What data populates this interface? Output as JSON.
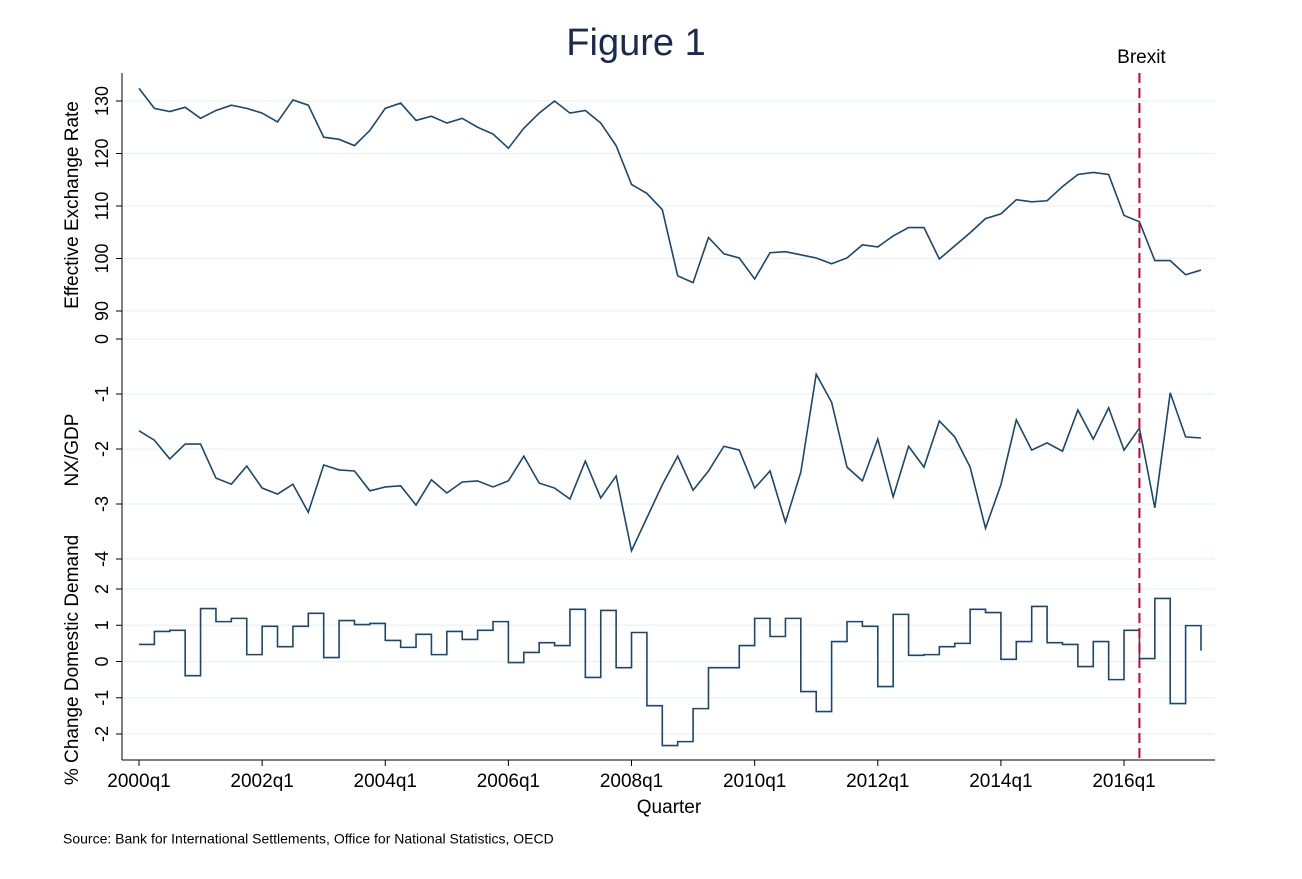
{
  "chart_data": {
    "type": "line",
    "title": "Figure 1",
    "xlabel": "Quarter",
    "source": "Source: Bank for International Settlements, Office for National Statistics, OECD",
    "color": "#1a476f",
    "grid": true,
    "annotation": {
      "label": "Brexit",
      "x": 65,
      "color": "#c10534"
    },
    "categories": [
      "2000q1",
      null,
      null,
      null,
      null,
      null,
      null,
      null,
      "2002q1",
      null,
      null,
      null,
      null,
      null,
      null,
      null,
      "2004q1",
      null,
      null,
      null,
      null,
      null,
      null,
      null,
      "2006q1",
      null,
      null,
      null,
      null,
      null,
      null,
      null,
      "2008q1",
      null,
      null,
      null,
      null,
      null,
      null,
      null,
      "2010q1",
      null,
      null,
      null,
      null,
      null,
      null,
      null,
      "2012q1",
      null,
      null,
      null,
      null,
      null,
      null,
      null,
      "2014q1",
      null,
      null,
      null,
      null,
      null,
      null,
      null,
      "2016q1",
      null,
      null,
      null,
      null,
      null
    ],
    "panels": [
      {
        "type": "line",
        "ylabel": "Effective Exchange Rate",
        "ylim": [
          90,
          130
        ],
        "yticks": [
          90,
          100,
          110,
          120,
          130
        ],
        "values": [
          132.4,
          128.6,
          128.0,
          128.8,
          126.7,
          128.2,
          129.2,
          128.6,
          127.7,
          126.0,
          130.2,
          129.2,
          123.1,
          122.7,
          121.5,
          124.4,
          128.6,
          129.6,
          126.3,
          127.1,
          125.8,
          126.7,
          125.0,
          123.7,
          121.0,
          124.8,
          127.7,
          130.0,
          127.7,
          128.2,
          125.8,
          121.5,
          114.1,
          112.4,
          109.3,
          96.7,
          95.4,
          104.0,
          100.9,
          100.1,
          96.1,
          101.1,
          101.3,
          100.7,
          100.1,
          99.0,
          100.1,
          102.6,
          102.2,
          104.3,
          105.9,
          105.9,
          99.9,
          102.4,
          104.9,
          107.6,
          108.5,
          111.2,
          110.8,
          111.0,
          113.7,
          116.0,
          116.4,
          116.0,
          108.2,
          107.0,
          99.6,
          99.6,
          96.9,
          97.8
        ]
      },
      {
        "type": "line",
        "ylabel": "NX/GDP",
        "ylim": [
          -4,
          0
        ],
        "yticks": [
          -4,
          -3,
          -2,
          -1,
          0
        ],
        "values": [
          -1.67,
          -1.84,
          -2.18,
          -1.91,
          -1.91,
          -2.53,
          -2.64,
          -2.31,
          -2.71,
          -2.82,
          -2.64,
          -3.15,
          -2.29,
          -2.38,
          -2.4,
          -2.76,
          -2.69,
          -2.67,
          -3.02,
          -2.56,
          -2.8,
          -2.6,
          -2.58,
          -2.69,
          -2.58,
          -2.13,
          -2.62,
          -2.71,
          -2.91,
          -2.22,
          -2.89,
          -2.49,
          -3.85,
          -3.25,
          -2.65,
          -2.13,
          -2.75,
          -2.4,
          -1.95,
          -2.02,
          -2.71,
          -2.4,
          -3.33,
          -2.42,
          -0.64,
          -1.15,
          -2.33,
          -2.58,
          -1.82,
          -2.87,
          -1.95,
          -2.33,
          -1.49,
          -1.78,
          -2.33,
          -3.44,
          -2.65,
          -1.47,
          -2.02,
          -1.89,
          -2.04,
          -1.29,
          -1.82,
          -1.25,
          -2.02,
          -1.62,
          -3.07,
          -0.98,
          -1.78,
          -1.8
        ]
      },
      {
        "type": "step",
        "ylabel": "% Change Domestic Demand",
        "ylim": [
          -2,
          2
        ],
        "yticks": [
          -2,
          -1,
          0,
          1,
          2
        ],
        "values": [
          0.47,
          0.83,
          0.86,
          -0.39,
          1.46,
          1.1,
          1.19,
          0.19,
          0.97,
          0.41,
          0.97,
          1.33,
          0.11,
          1.13,
          1.02,
          1.05,
          0.58,
          0.39,
          0.75,
          0.19,
          0.83,
          0.61,
          0.86,
          1.1,
          -0.03,
          0.25,
          0.52,
          0.44,
          1.44,
          -0.44,
          1.41,
          -0.17,
          0.8,
          -1.22,
          -2.32,
          -2.21,
          -1.3,
          -0.17,
          -0.17,
          0.44,
          1.19,
          0.69,
          1.19,
          -0.83,
          -1.38,
          0.55,
          1.1,
          0.97,
          -0.69,
          1.3,
          0.17,
          0.19,
          0.41,
          0.5,
          1.44,
          1.35,
          0.06,
          0.55,
          1.52,
          0.52,
          0.47,
          -0.14,
          0.55,
          -0.5,
          0.86,
          0.08,
          1.74,
          -1.16,
          0.99,
          0.3
        ]
      }
    ]
  }
}
